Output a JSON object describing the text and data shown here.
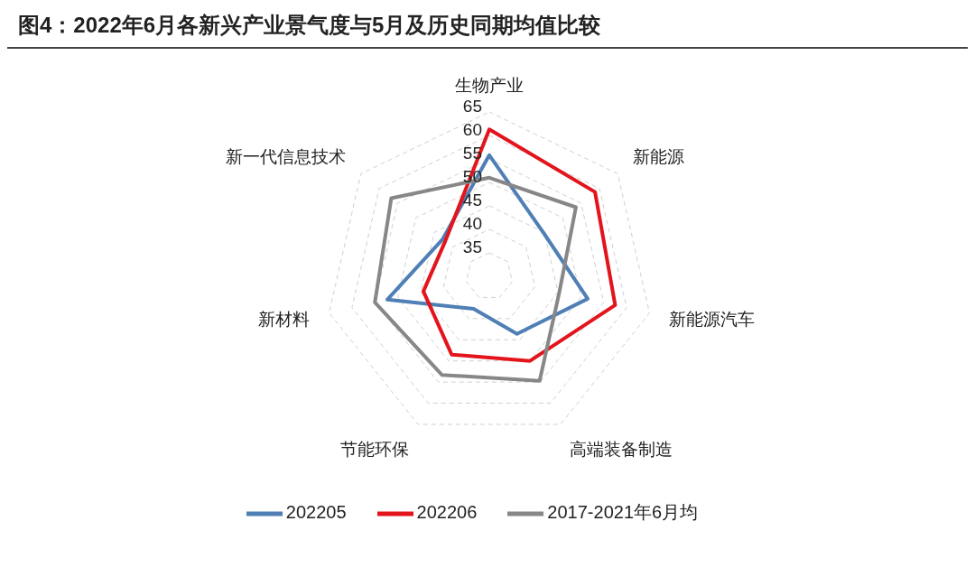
{
  "chart_data": {
    "type": "radar",
    "title": "图4：2022年6月各新兴产业景气度与5月及历史同期均值比较",
    "categories": [
      "生物产业",
      "新能源",
      "新能源汽车",
      "高端装备制造",
      "节能环保",
      "新材料",
      "新一代信息技术"
    ],
    "series": [
      {
        "name": "202205",
        "color": "#4f7fb5",
        "values": [
          55.8,
          44.8,
          51.5,
          43.6,
          37.7,
          52.3,
          42.7
        ]
      },
      {
        "name": "202206",
        "color": "#e3141c",
        "values": [
          61.3,
          58.8,
          57.5,
          50.0,
          48.5,
          44.4,
          42.0
        ]
      },
      {
        "name": "2017-2021年6月均",
        "color": "#878787",
        "values": [
          51.0,
          53.6,
          45.3,
          54.7,
          53.3,
          55.0,
          56.7
        ]
      }
    ],
    "ylim": [
      30,
      65
    ],
    "yticks": [
      35,
      40,
      45,
      50,
      55,
      60,
      65
    ],
    "grid": true,
    "legend": "bottom"
  }
}
